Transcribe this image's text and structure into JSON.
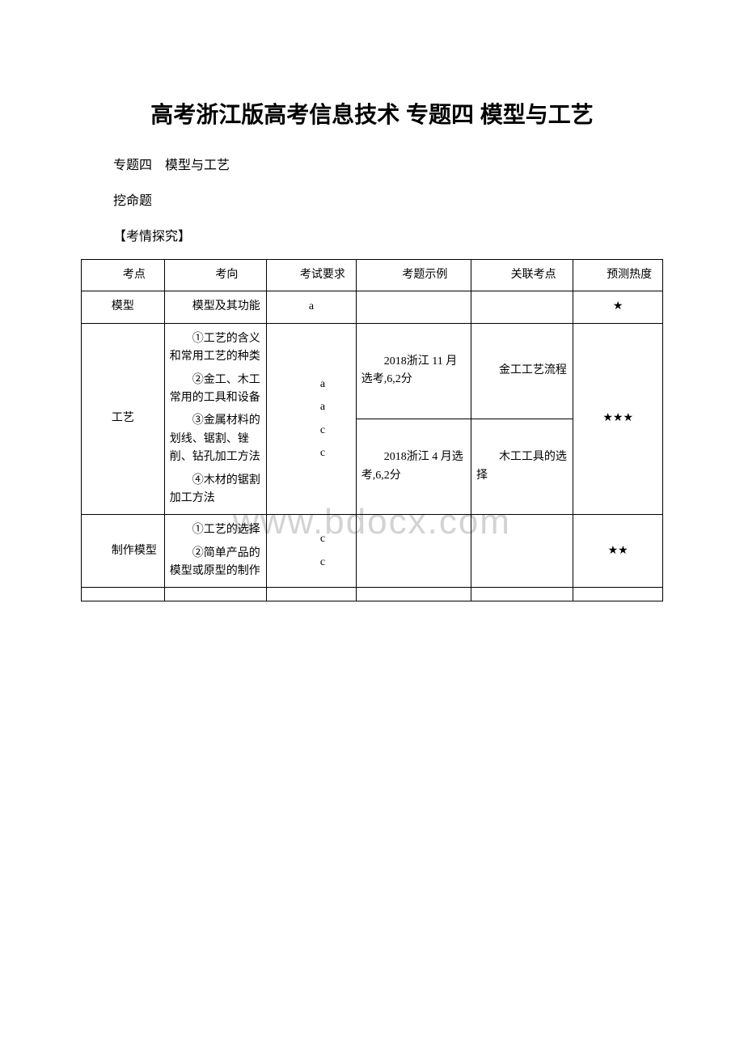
{
  "watermark": "www.bdocx.com",
  "title": "高考浙江版高考信息技术 专题四 模型与工艺",
  "subtitle": "专题四　模型与工艺",
  "section_label": "挖命题",
  "section_heading": "【考情探究】",
  "table": {
    "headers": [
      "考点",
      "考向",
      "考试要求",
      "考题示例",
      "关联考点",
      "预测热度"
    ],
    "rows": [
      {
        "col1": "模型",
        "col2": "模型及其功能",
        "col3": "a",
        "col4": "",
        "col5": "",
        "col6": "★"
      },
      {
        "col1": "工艺",
        "col2_items": [
          "①工艺的含义和常用工艺的种类",
          "②金工、木工常用的工具和设备",
          "③金属材料的划线、锯割、锉削、钻孔加工方法",
          "④木材的锯割加工方法"
        ],
        "col3_items": [
          "a",
          "a",
          "c",
          "c"
        ],
        "col4_a": "2018浙江 11 月选考,6,2分",
        "col4_b": "2018浙江 4 月选考,6,2分",
        "col5_a": "金工工艺流程",
        "col5_b": "木工工具的选择",
        "col6": "★★★"
      },
      {
        "col1": "制作模型",
        "col2_items": [
          "①工艺的选择",
          "②简单产品的模型或原型的制作"
        ],
        "col3_items": [
          "c",
          "c"
        ],
        "col4": "",
        "col5": "",
        "col6": "★★"
      }
    ]
  }
}
